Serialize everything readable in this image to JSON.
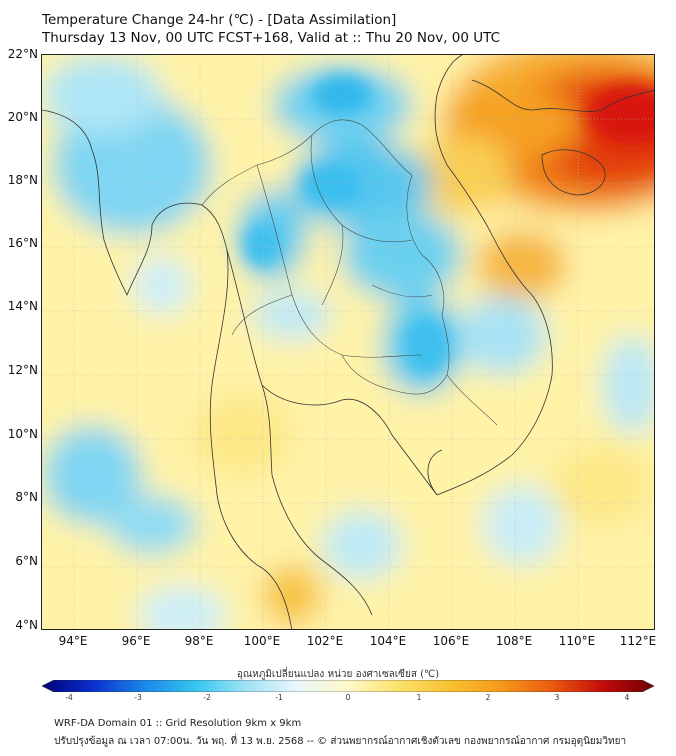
{
  "title": {
    "line1": "Temperature Change 24-hr (℃) - [Data Assimilation]",
    "line2": "Thursday 13 Nov, 00 UTC FCST+168, Valid at :: Thu 20 Nov, 00 UTC"
  },
  "map": {
    "latitude_labels": [
      "22°N",
      "20°N",
      "18°N",
      "16°N",
      "14°N",
      "12°N",
      "10°N",
      "8°N",
      "6°N",
      "4°N"
    ],
    "longitude_labels": [
      "94°E",
      "96°E",
      "98°E",
      "100°E",
      "102°E",
      "104°E",
      "106°E",
      "108°E",
      "110°E",
      "112°E"
    ]
  },
  "colorbar": {
    "title": "อุณหภูมิเปลี่ยนแปลง หน่วย องศาเซลเซียส (℃)",
    "ticks": [
      "-4",
      "-3",
      "-2",
      "-1",
      "0",
      "1",
      "2",
      "3",
      "4"
    ],
    "min": -4,
    "max": 4,
    "colors": [
      "#00007a",
      "#0a2fcf",
      "#1c86e8",
      "#35c6ef",
      "#9fe2f4",
      "#e9f7fb",
      "#fff8c8",
      "#fbe26a",
      "#f6c230",
      "#f59a1a",
      "#ea5a0e",
      "#c40b0b",
      "#6e0000"
    ]
  },
  "footer": {
    "line1": "WRF-DA Domain 01 :: Grid Resolution 9km x 9km",
    "line2": "ปรับปรุงข้อมูล ณ เวลา 07:00น. วัน พฤ. ที่ 13 พ.ย. 2568 -- © ส่วนพยากรณ์อากาศเชิงตัวเลข กองพยากรณ์อากาศ กรมอุตุนิยมวิทยา"
  }
}
